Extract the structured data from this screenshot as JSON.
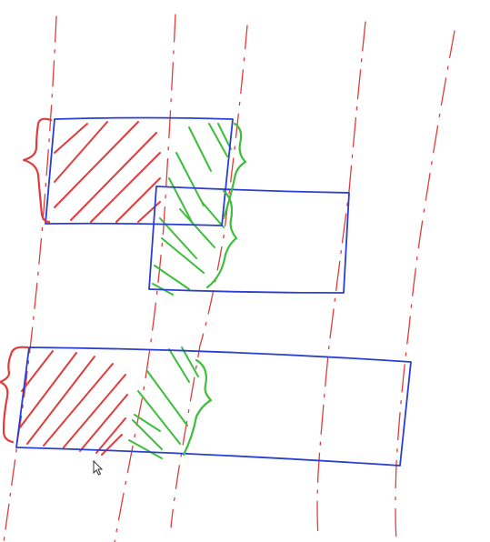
{
  "canvas": {
    "background": "#ffffff"
  },
  "colors": {
    "guide_lines": "#e03c3c",
    "rectangles": "#2a3fd0",
    "red_hatch": "#e03c3c",
    "green_hatch": "#3cbf3a",
    "cursor_fill": "#ffffff",
    "cursor_stroke": "#333333"
  },
  "drawing": {
    "description_items": [
      "dashed-vertical-guides",
      "top-left-rectangle",
      "middle-right-rectangle",
      "bottom-long-rectangle",
      "red-hatched-regions",
      "green-hatched-regions",
      "braces",
      "mouse-cursor"
    ],
    "cursor_icon": "mouse-pointer-icon"
  }
}
